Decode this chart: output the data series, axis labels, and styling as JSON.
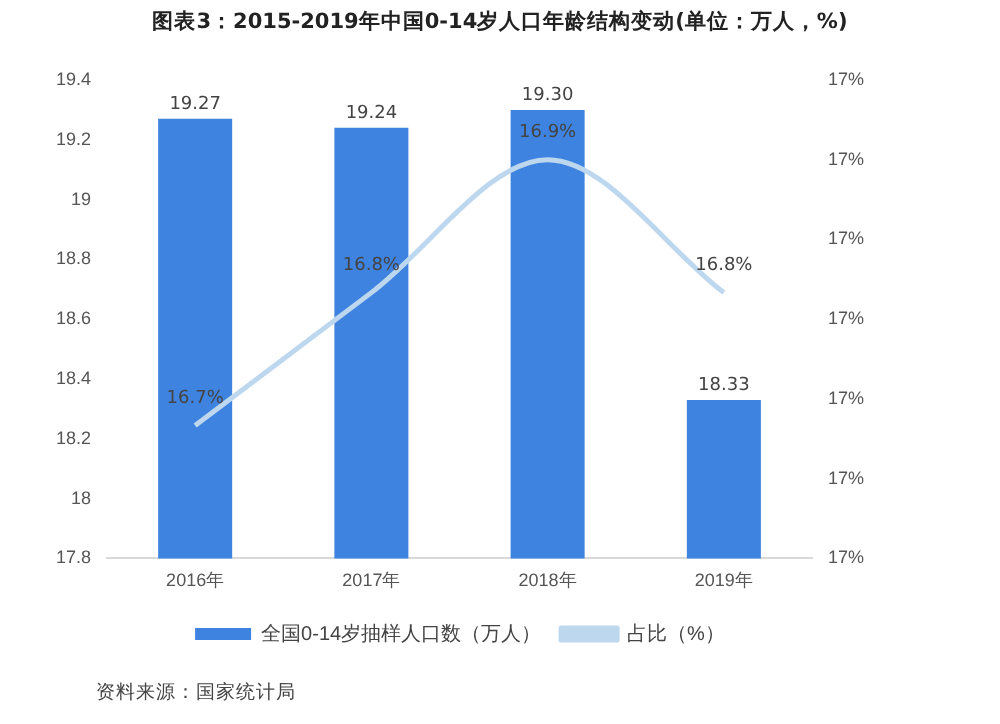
{
  "chart_data": {
    "type": "bar",
    "title": "图表3：2015-2019年中国0-14岁人口年龄结构变动(单位：万人，%)",
    "categories": [
      "2016年",
      "2017年",
      "2018年",
      "2019年"
    ],
    "series": [
      {
        "name": "全国0-14岁抽样人口数（万人）",
        "color": "#3f83e0",
        "values": [
          19.27,
          19.24,
          19.3,
          18.33
        ],
        "value_labels": [
          "19.27",
          "19.24",
          "19.30",
          "18.33"
        ]
      },
      {
        "name": "占比（%）",
        "type": "line",
        "axis": "y2",
        "color": "#bdd7ee",
        "values": [
          16.7,
          16.8,
          16.9,
          16.8
        ],
        "value_labels": [
          "16.7%",
          "16.8%",
          "16.9%",
          "16.8%"
        ]
      }
    ],
    "ylim": [
      17.8,
      19.4
    ],
    "yticks": [
      17.8,
      18,
      18.2,
      18.4,
      18.6,
      18.8,
      19,
      19.2,
      19.4
    ],
    "y2lim": [
      16.6,
      16.96
    ],
    "y2ticks": [
      {
        "value": 16.6,
        "label": "17%"
      },
      {
        "value": 16.66,
        "label": "17%"
      },
      {
        "value": 16.72,
        "label": "17%"
      },
      {
        "value": 16.78,
        "label": "17%"
      },
      {
        "value": 16.84,
        "label": "17%"
      },
      {
        "value": 16.9,
        "label": "17%"
      },
      {
        "value": 16.96,
        "label": "17%"
      }
    ],
    "grid": false,
    "legend": "bottom",
    "marker": "none",
    "annotations": [
      "资料来源：国家统计局"
    ]
  }
}
